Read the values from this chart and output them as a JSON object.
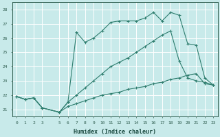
{
  "xlabel": "Humidex (Indice chaleur)",
  "bg_color": "#c8eaea",
  "grid_color": "#ffffff",
  "line_color": "#2e7d6e",
  "xlim": [
    -0.5,
    23.5
  ],
  "ylim": [
    20.5,
    28.5
  ],
  "xticks": [
    0,
    1,
    2,
    3,
    5,
    6,
    7,
    8,
    9,
    10,
    11,
    12,
    13,
    14,
    15,
    16,
    17,
    18,
    19,
    20,
    21,
    22,
    23
  ],
  "yticks": [
    21,
    22,
    23,
    24,
    25,
    26,
    27,
    28
  ],
  "line1_x": [
    0,
    1,
    2,
    3,
    5,
    6,
    7,
    8,
    9,
    10,
    11,
    12,
    13,
    14,
    15,
    16,
    17,
    18,
    19,
    20,
    21,
    22,
    23
  ],
  "line1_y": [
    21.9,
    21.7,
    21.8,
    21.1,
    20.8,
    21.2,
    21.4,
    21.6,
    21.8,
    22.0,
    22.1,
    22.2,
    22.4,
    22.5,
    22.6,
    22.8,
    22.9,
    23.1,
    23.2,
    23.4,
    23.5,
    22.8,
    22.7
  ],
  "line2_x": [
    0,
    1,
    2,
    3,
    5,
    6,
    7,
    8,
    9,
    10,
    11,
    12,
    13,
    14,
    15,
    16,
    17,
    18,
    19,
    20,
    21,
    22,
    23
  ],
  "line2_y": [
    21.9,
    21.7,
    21.8,
    21.1,
    20.8,
    21.5,
    22.0,
    22.5,
    23.0,
    23.5,
    24.0,
    24.3,
    24.6,
    25.0,
    25.4,
    25.8,
    26.2,
    26.5,
    24.4,
    23.2,
    23.0,
    22.9,
    22.7
  ],
  "line3_x": [
    0,
    1,
    2,
    3,
    5,
    6,
    7,
    8,
    9,
    10,
    11,
    12,
    13,
    14,
    15,
    16,
    17,
    18,
    19,
    20,
    21,
    22,
    23
  ],
  "line3_y": [
    21.9,
    21.7,
    21.8,
    21.1,
    20.8,
    21.5,
    26.4,
    25.7,
    26.0,
    26.5,
    27.1,
    27.2,
    27.2,
    27.2,
    27.4,
    27.8,
    27.2,
    27.8,
    27.6,
    25.6,
    25.5,
    23.2,
    22.7
  ]
}
